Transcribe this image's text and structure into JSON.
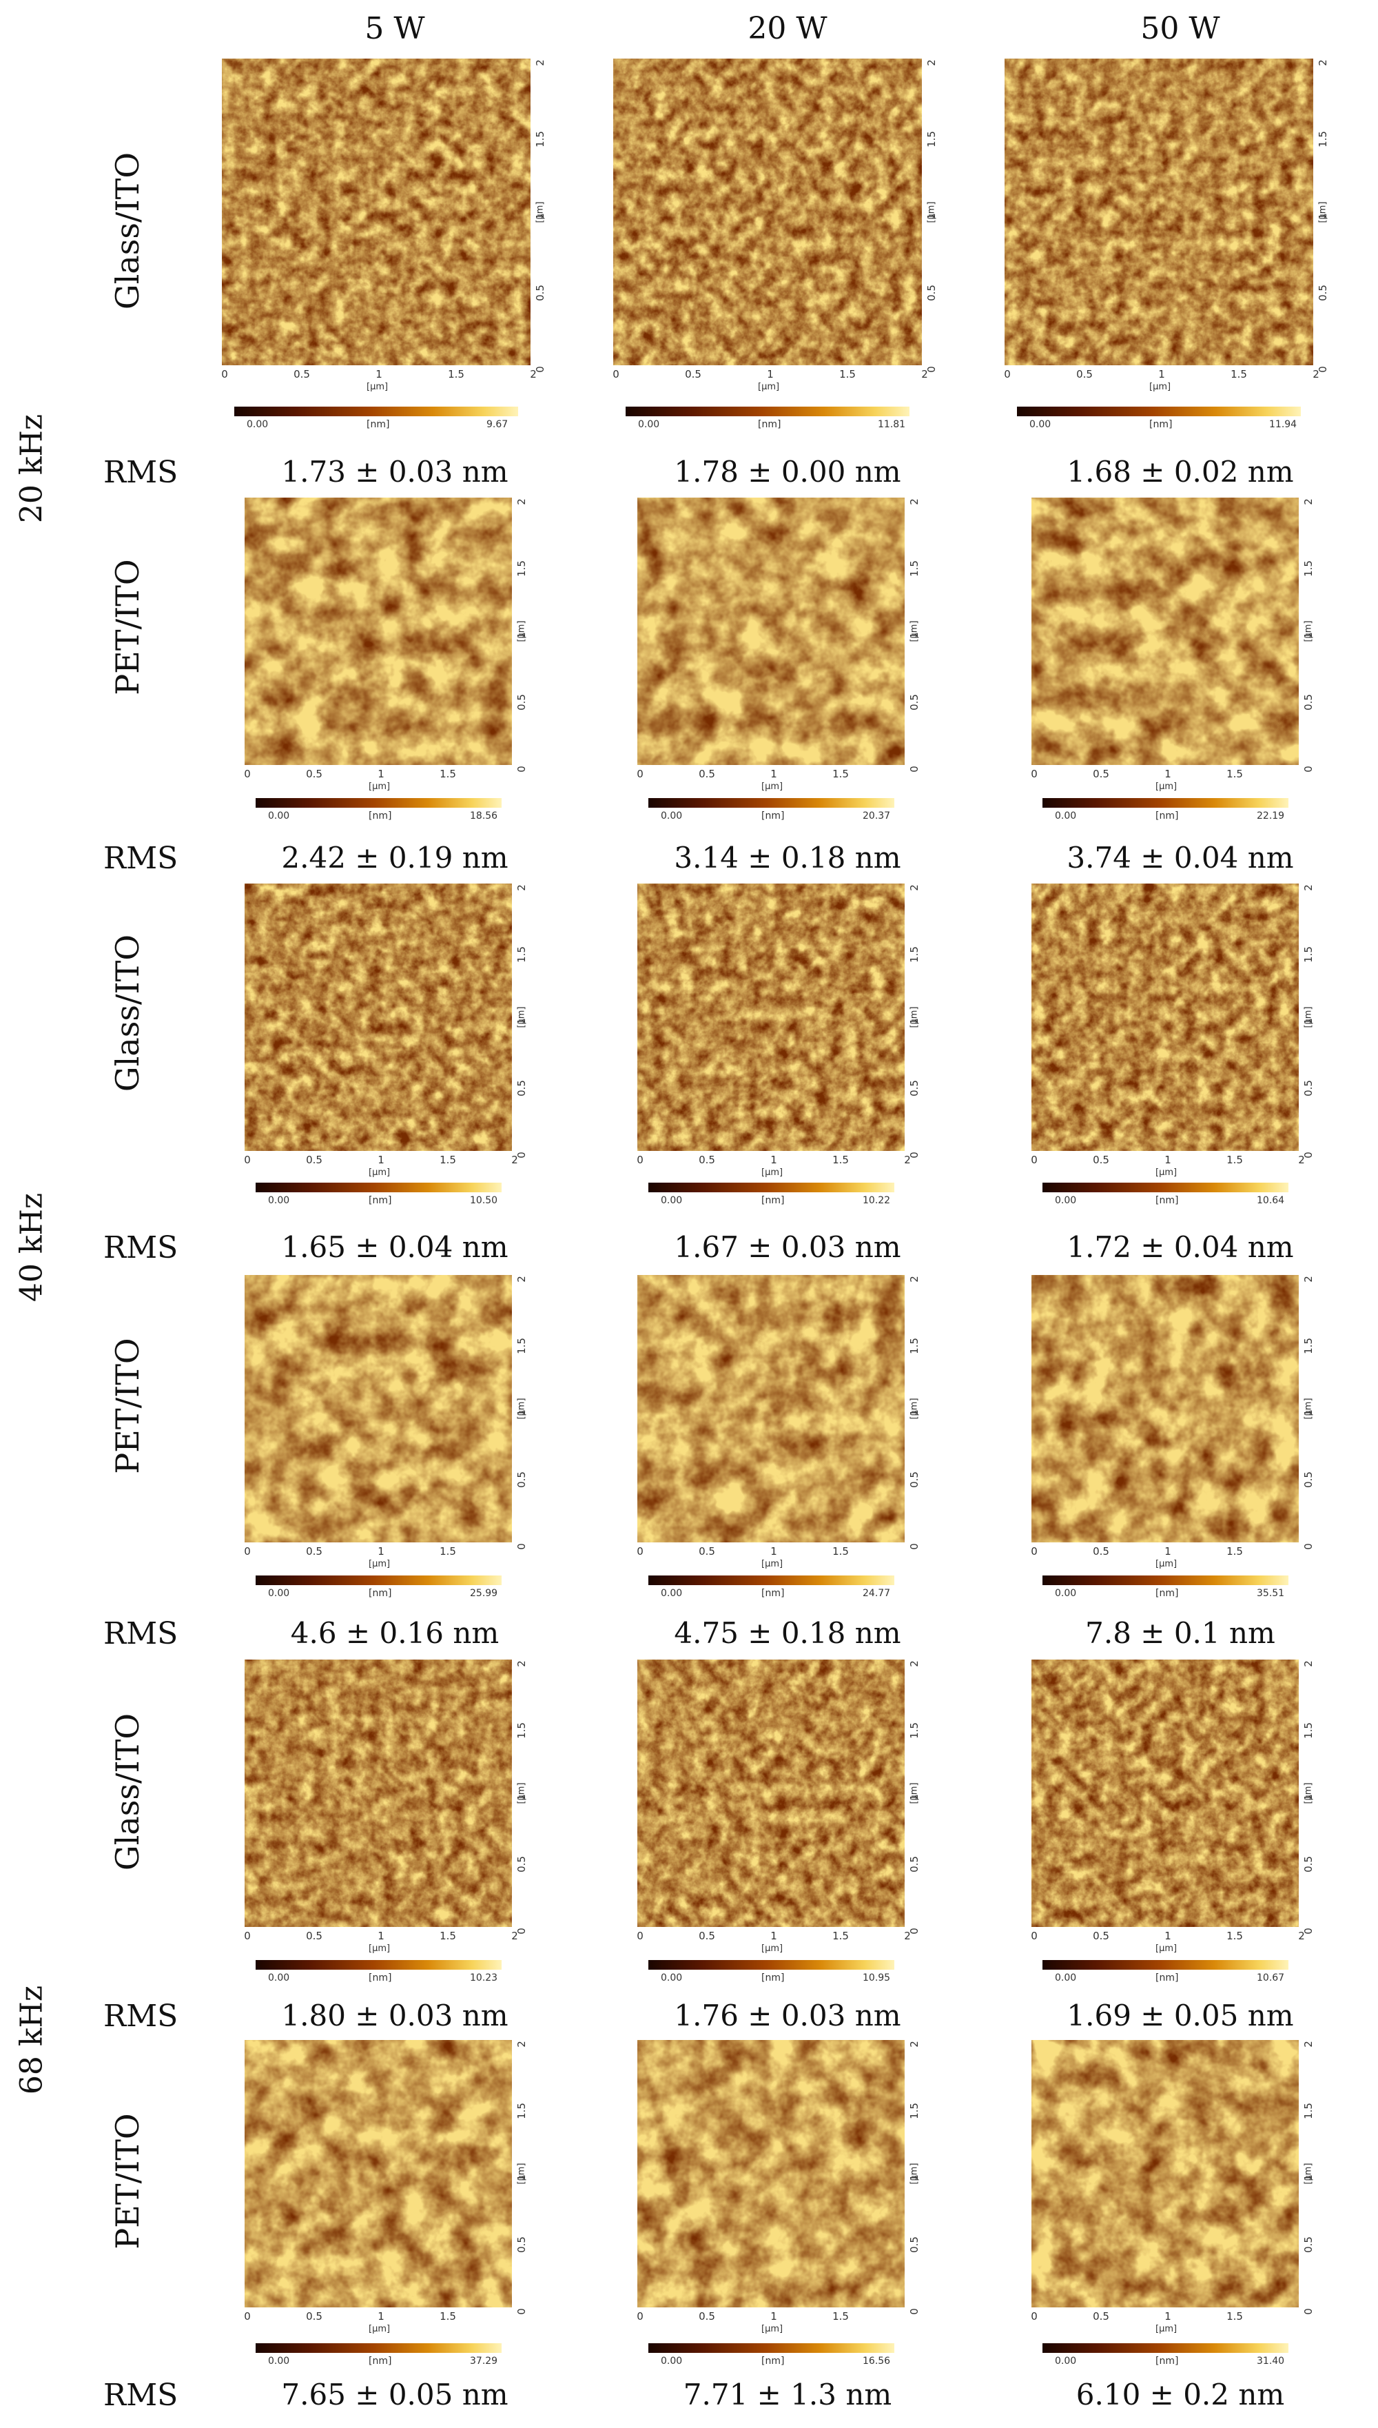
{
  "columns": [
    "5 W",
    "20 W",
    "50 W"
  ],
  "frequencies": [
    "20 kHz",
    "40 kHz",
    "68 kHz"
  ],
  "rms_label": "RMS",
  "axis_unit": "[µm]",
  "height_unit": "[nm]",
  "x_ticks_full": [
    "0",
    "0.5",
    "1",
    "1.5",
    "2"
  ],
  "x_ticks_short": [
    "0",
    "0.5",
    "1",
    "1.5"
  ],
  "y_ticks": [
    "0",
    "0.5",
    "1",
    "1.5",
    "2"
  ],
  "colormap_min": "0.00",
  "rows": [
    {
      "sample": "Glass/ITO",
      "rms": [
        "1.73 ± 0.03 nm",
        "1.78 ± 0.00 nm",
        "1.68 ± 0.02 nm"
      ],
      "max": [
        "9.67",
        "11.81",
        "11.94"
      ]
    },
    {
      "sample": "PET/ITO",
      "rms": [
        "2.42 ± 0.19 nm",
        "3.14 ± 0.18 nm",
        "3.74 ± 0.04 nm"
      ],
      "max": [
        "18.56",
        "20.37",
        "22.19"
      ]
    },
    {
      "sample": "Glass/ITO",
      "rms": [
        "1.65 ± 0.04 nm",
        "1.67 ± 0.03 nm",
        "1.72 ± 0.04 nm"
      ],
      "max": [
        "10.50",
        "10.22",
        "10.64"
      ]
    },
    {
      "sample": "PET/ITO",
      "rms": [
        "4.6 ± 0.16 nm",
        "4.75 ± 0.18 nm",
        "7.8 ± 0.1 nm"
      ],
      "max": [
        "25.99",
        "24.77",
        "35.51"
      ]
    },
    {
      "sample": "Glass/ITO",
      "rms": [
        "1.80 ± 0.03 nm",
        "1.76 ± 0.03 nm",
        "1.69 ± 0.05 nm"
      ],
      "max": [
        "10.23",
        "10.95",
        "10.67"
      ]
    },
    {
      "sample": "PET/ITO",
      "rms": [
        "7.65 ± 0.05 nm",
        "7.71 ± 1.3 nm",
        "6.10 ± 0.2 nm"
      ],
      "max": [
        "37.29",
        "16.56",
        "31.40"
      ]
    }
  ]
}
